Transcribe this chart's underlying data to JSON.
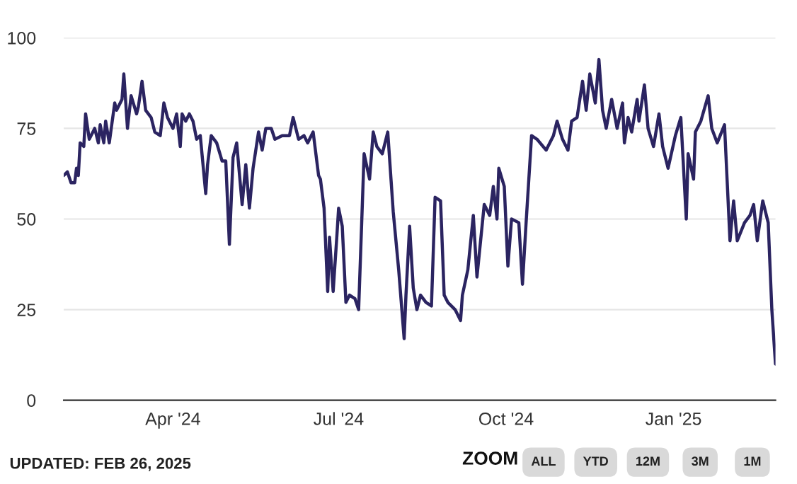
{
  "chart_data": {
    "type": "line",
    "x": [
      "2024-02-01",
      "2024-02-03",
      "2024-02-05",
      "2024-02-07",
      "2024-02-08",
      "2024-02-09",
      "2024-02-10",
      "2024-02-12",
      "2024-02-13",
      "2024-02-15",
      "2024-02-18",
      "2024-02-20",
      "2024-02-21",
      "2024-02-23",
      "2024-02-24",
      "2024-02-26",
      "2024-02-29",
      "2024-03-01",
      "2024-03-04",
      "2024-03-05",
      "2024-03-07",
      "2024-03-09",
      "2024-03-12",
      "2024-03-13",
      "2024-03-15",
      "2024-03-17",
      "2024-03-20",
      "2024-03-22",
      "2024-03-25",
      "2024-03-27",
      "2024-03-29",
      "2024-04-01",
      "2024-04-03",
      "2024-04-05",
      "2024-04-06",
      "2024-04-08",
      "2024-04-10",
      "2024-04-12",
      "2024-04-14",
      "2024-04-16",
      "2024-04-19",
      "2024-04-20",
      "2024-04-22",
      "2024-04-25",
      "2024-04-28",
      "2024-04-30",
      "2024-05-02",
      "2024-05-04",
      "2024-05-06",
      "2024-05-09",
      "2024-05-11",
      "2024-05-13",
      "2024-05-15",
      "2024-05-18",
      "2024-05-20",
      "2024-05-22",
      "2024-05-25",
      "2024-05-27",
      "2024-05-31",
      "2024-06-04",
      "2024-06-06",
      "2024-06-09",
      "2024-06-12",
      "2024-06-14",
      "2024-06-17",
      "2024-06-20",
      "2024-06-21",
      "2024-06-23",
      "2024-06-25",
      "2024-06-26",
      "2024-06-28",
      "2024-06-30",
      "2024-07-01",
      "2024-07-03",
      "2024-07-05",
      "2024-07-07",
      "2024-07-10",
      "2024-07-12",
      "2024-07-15",
      "2024-07-18",
      "2024-07-20",
      "2024-07-22",
      "2024-07-25",
      "2024-07-28",
      "2024-07-31",
      "2024-08-03",
      "2024-08-06",
      "2024-08-07",
      "2024-08-09",
      "2024-08-11",
      "2024-08-13",
      "2024-08-15",
      "2024-08-18",
      "2024-08-21",
      "2024-08-23",
      "2024-08-26",
      "2024-08-28",
      "2024-08-30",
      "2024-09-03",
      "2024-09-06",
      "2024-09-07",
      "2024-09-10",
      "2024-09-13",
      "2024-09-15",
      "2024-09-19",
      "2024-09-22",
      "2024-09-24",
      "2024-09-26",
      "2024-09-27",
      "2024-09-30",
      "2024-10-02",
      "2024-10-04",
      "2024-10-08",
      "2024-10-10",
      "2024-10-12",
      "2024-10-15",
      "2024-10-18",
      "2024-10-23",
      "2024-10-27",
      "2024-10-29",
      "2024-11-01",
      "2024-11-04",
      "2024-11-06",
      "2024-11-09",
      "2024-11-12",
      "2024-11-14",
      "2024-11-16",
      "2024-11-19",
      "2024-11-21",
      "2024-11-23",
      "2024-11-25",
      "2024-11-28",
      "2024-12-01",
      "2024-12-04",
      "2024-12-05",
      "2024-12-07",
      "2024-12-09",
      "2024-12-12",
      "2024-12-13",
      "2024-12-16",
      "2024-12-18",
      "2024-12-21",
      "2024-12-24",
      "2024-12-26",
      "2024-12-29",
      "2025-01-02",
      "2025-01-05",
      "2025-01-08",
      "2025-01-09",
      "2025-01-12",
      "2025-01-13",
      "2025-01-16",
      "2025-01-20",
      "2025-01-22",
      "2025-01-25",
      "2025-01-29",
      "2025-02-01",
      "2025-02-03",
      "2025-02-05",
      "2025-02-09",
      "2025-02-12",
      "2025-02-14",
      "2025-02-16",
      "2025-02-19",
      "2025-02-22",
      "2025-02-24",
      "2025-02-26"
    ],
    "series": [
      {
        "color": "#2b2461",
        "values": [
          62,
          63,
          60,
          60,
          64,
          62,
          71,
          70,
          79,
          72,
          75,
          71,
          76,
          71,
          77,
          71,
          82,
          80,
          83,
          90,
          75,
          84,
          79,
          81,
          88,
          80,
          78,
          74,
          73,
          82,
          78,
          75,
          79,
          70,
          79,
          77,
          79,
          77,
          72,
          73,
          57,
          65,
          73,
          71,
          66,
          66,
          43,
          67,
          71,
          54,
          65,
          53,
          64,
          74,
          69,
          75,
          75,
          72,
          73,
          73,
          78,
          72,
          73,
          71,
          74,
          62,
          61,
          53,
          30,
          45,
          30,
          45,
          53,
          48,
          27,
          29,
          28,
          25,
          68,
          61,
          74,
          70,
          68,
          74,
          52,
          36,
          17,
          29,
          48,
          31,
          25,
          29,
          27,
          26,
          56,
          55,
          29,
          27,
          25,
          22,
          29,
          36,
          51,
          34,
          54,
          51,
          59,
          50,
          64,
          59,
          37,
          50,
          49,
          32,
          49,
          73,
          72,
          69,
          73,
          77,
          72,
          69,
          77,
          78,
          88,
          80,
          90,
          82,
          94,
          80,
          75,
          83,
          75,
          82,
          71,
          78,
          74,
          83,
          77,
          87,
          75,
          70,
          79,
          70,
          64,
          73,
          78,
          50,
          68,
          61,
          74,
          77,
          84,
          75,
          71,
          76,
          44,
          55,
          44,
          49,
          51,
          54,
          44,
          55,
          49,
          25,
          10
        ]
      }
    ],
    "xlim": [
      "2024-02-01",
      "2025-02-26"
    ],
    "xticks": [
      {
        "value": "2024-04-01",
        "label": "Apr '24"
      },
      {
        "value": "2024-07-01",
        "label": "Jul '24"
      },
      {
        "value": "2024-10-01",
        "label": "Oct '24"
      },
      {
        "value": "2025-01-01",
        "label": "Jan '25"
      }
    ],
    "ylim": [
      0,
      100
    ],
    "yticks": [
      0,
      25,
      50,
      75,
      100
    ],
    "grid": "y",
    "annotations": [
      "UPDATED: FEB 26, 2025",
      "ZOOM",
      "ALL",
      "YTD",
      "12M",
      "3M",
      "1M"
    ]
  }
}
